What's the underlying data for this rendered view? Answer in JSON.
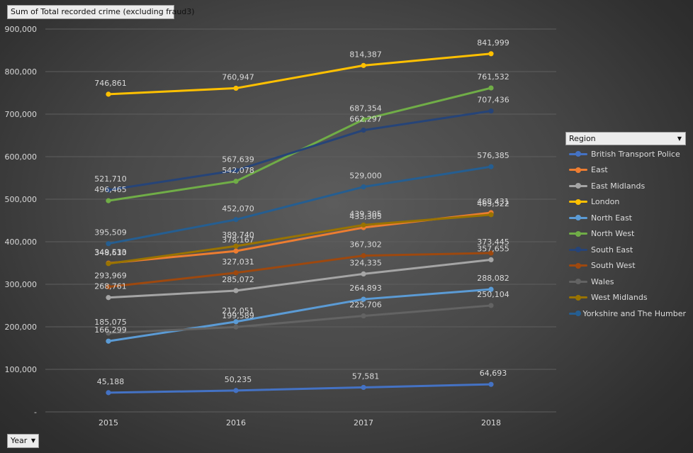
{
  "pivot": {
    "value_field": "Sum of Total recorded crime  (excluding fraud3)",
    "axis_field": "Year",
    "legend_field": "Region",
    "dropdown_glyph": "▼"
  },
  "chart_data": {
    "type": "line",
    "title": "Sum of Total recorded crime  (excluding fraud3)",
    "xlabel": "Year",
    "ylabel": "",
    "x": [
      "2015",
      "2016",
      "2017",
      "2018"
    ],
    "ylim": [
      0,
      900000
    ],
    "y_ticks": [
      {
        "value": 0,
        "label": "-"
      },
      {
        "value": 100000,
        "label": "100,000"
      },
      {
        "value": 200000,
        "label": "200,000"
      },
      {
        "value": 300000,
        "label": "300,000"
      },
      {
        "value": 400000,
        "label": "400,000"
      },
      {
        "value": 500000,
        "label": "500,000"
      },
      {
        "value": 600000,
        "label": "600,000"
      },
      {
        "value": 700000,
        "label": "700,000"
      },
      {
        "value": 800000,
        "label": "800,000"
      },
      {
        "value": 900000,
        "label": "900,000"
      }
    ],
    "grid": true,
    "legend_position": "right",
    "series": [
      {
        "name": "British Transport Police",
        "color": "#4472c4",
        "values": [
          45188,
          50235,
          57581,
          64693
        ],
        "labels": [
          "45,188",
          "50,235",
          "57,581",
          "64,693"
        ]
      },
      {
        "name": "East",
        "color": "#ed7d31",
        "values": [
          349533,
          378167,
          433305,
          468431
        ],
        "labels": [
          "349,533",
          "378,167",
          "433,305",
          "468,431"
        ]
      },
      {
        "name": "East Midlands",
        "color": "#a5a5a5",
        "values": [
          268761,
          285072,
          324335,
          357655
        ],
        "labels": [
          "268,761",
          "285,072",
          "324,335",
          "357,655"
        ]
      },
      {
        "name": "London",
        "color": "#ffc000",
        "values": [
          746861,
          760947,
          814387,
          841999
        ],
        "labels": [
          "746,861",
          "760,947",
          "814,387",
          "841,999"
        ]
      },
      {
        "name": "North East",
        "color": "#5b9bd5",
        "values": [
          166299,
          212051,
          264893,
          288082
        ],
        "labels": [
          "166,299",
          "212,051",
          "264,893",
          "288,082"
        ]
      },
      {
        "name": "North West",
        "color": "#70ad47",
        "values": [
          496465,
          542078,
          687354,
          761532
        ],
        "labels": [
          "496,465",
          "542,078",
          "687,354",
          "761,532"
        ]
      },
      {
        "name": "South East",
        "color": "#264478",
        "values": [
          521710,
          567639,
          662297,
          707436
        ],
        "labels": [
          "521,710",
          "567,639",
          "662,297",
          "707,436"
        ]
      },
      {
        "name": "South West",
        "color": "#9e480e",
        "values": [
          293969,
          327031,
          367302,
          373445
        ],
        "labels": [
          "293,969",
          "327,031",
          "367,302",
          "373,445"
        ]
      },
      {
        "name": "Wales",
        "color": "#636363",
        "values": [
          185075,
          199589,
          225706,
          250104
        ],
        "labels": [
          "185,075",
          "199,589",
          "225,706",
          "250,104"
        ]
      },
      {
        "name": "West Midlands",
        "color": "#997300",
        "values": [
          348610,
          389740,
          439305,
          463522
        ],
        "labels": [
          "348,610",
          "389,740",
          "439,305",
          "463,522"
        ]
      },
      {
        "name": "Yorkshire and The Humber",
        "color": "#255e91",
        "values": [
          395509,
          452070,
          529000,
          576385
        ],
        "labels": [
          "395,509",
          "452,070",
          "529,000",
          "576,385"
        ]
      }
    ]
  }
}
